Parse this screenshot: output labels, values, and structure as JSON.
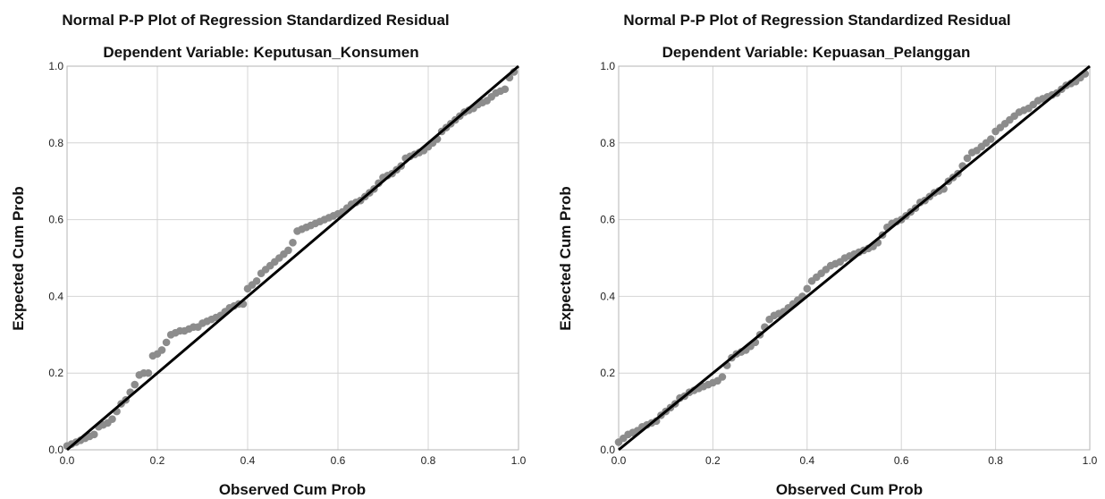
{
  "chart_data": [
    {
      "type": "scatter",
      "title": "Normal P-P Plot of Regression Standardized Residual",
      "subtitle": "Dependent Variable: Keputusan_Konsumen",
      "xlabel": "Observed Cum Prob",
      "ylabel": "Expected Cum Prob",
      "xlim": [
        0.0,
        1.0
      ],
      "ylim": [
        0.0,
        1.0
      ],
      "xticks": [
        "0.0",
        "0.2",
        "0.4",
        "0.6",
        "0.8",
        "1.0"
      ],
      "yticks": [
        "0.0",
        "0.2",
        "0.4",
        "0.6",
        "0.8",
        "1.0"
      ],
      "grid": true,
      "reference_line": {
        "x": [
          0,
          1
        ],
        "y": [
          0,
          1
        ],
        "color": "#000000"
      },
      "point_color": "#8c8c8c",
      "series": [
        {
          "x": [
            0.0,
            0.01,
            0.02,
            0.03,
            0.04,
            0.05,
            0.06,
            0.07,
            0.08,
            0.09,
            0.1,
            0.11,
            0.12,
            0.13,
            0.14,
            0.15,
            0.16,
            0.17,
            0.18,
            0.19,
            0.2,
            0.21,
            0.22,
            0.23,
            0.24,
            0.25,
            0.26,
            0.27,
            0.28,
            0.29,
            0.3,
            0.31,
            0.32,
            0.33,
            0.34,
            0.35,
            0.36,
            0.37,
            0.38,
            0.39,
            0.4,
            0.41,
            0.42,
            0.43,
            0.44,
            0.45,
            0.46,
            0.47,
            0.48,
            0.49,
            0.5,
            0.51,
            0.52,
            0.53,
            0.54,
            0.55,
            0.56,
            0.57,
            0.58,
            0.59,
            0.6,
            0.61,
            0.62,
            0.63,
            0.64,
            0.65,
            0.66,
            0.67,
            0.68,
            0.69,
            0.7,
            0.71,
            0.72,
            0.73,
            0.74,
            0.75,
            0.76,
            0.77,
            0.78,
            0.79,
            0.8,
            0.81,
            0.82,
            0.83,
            0.84,
            0.85,
            0.86,
            0.87,
            0.88,
            0.89,
            0.9,
            0.91,
            0.92,
            0.93,
            0.94,
            0.95,
            0.96,
            0.97,
            0.98,
            0.99
          ],
          "y": [
            0.01,
            0.015,
            0.02,
            0.025,
            0.03,
            0.035,
            0.04,
            0.06,
            0.065,
            0.07,
            0.08,
            0.1,
            0.12,
            0.13,
            0.15,
            0.17,
            0.195,
            0.2,
            0.2,
            0.245,
            0.25,
            0.26,
            0.28,
            0.3,
            0.305,
            0.31,
            0.31,
            0.315,
            0.32,
            0.32,
            0.33,
            0.335,
            0.34,
            0.345,
            0.35,
            0.36,
            0.37,
            0.375,
            0.38,
            0.38,
            0.42,
            0.43,
            0.44,
            0.46,
            0.47,
            0.48,
            0.49,
            0.5,
            0.51,
            0.52,
            0.54,
            0.57,
            0.575,
            0.58,
            0.585,
            0.59,
            0.595,
            0.6,
            0.605,
            0.61,
            0.615,
            0.62,
            0.63,
            0.64,
            0.645,
            0.65,
            0.66,
            0.67,
            0.68,
            0.695,
            0.71,
            0.715,
            0.72,
            0.73,
            0.74,
            0.76,
            0.765,
            0.77,
            0.775,
            0.78,
            0.79,
            0.8,
            0.81,
            0.83,
            0.84,
            0.85,
            0.86,
            0.87,
            0.88,
            0.885,
            0.89,
            0.9,
            0.905,
            0.91,
            0.92,
            0.93,
            0.935,
            0.94,
            0.97,
            0.985
          ]
        }
      ]
    },
    {
      "type": "scatter",
      "title": "Normal P-P Plot of Regression Standardized Residual",
      "subtitle": "Dependent Variable: Kepuasan_Pelanggan",
      "xlabel": "Observed Cum Prob",
      "ylabel": "Expected Cum Prob",
      "xlim": [
        0.0,
        1.0
      ],
      "ylim": [
        0.0,
        1.0
      ],
      "xticks": [
        "0.0",
        "0.2",
        "0.4",
        "0.6",
        "0.8",
        "1.0"
      ],
      "yticks": [
        "0.0",
        "0.2",
        "0.4",
        "0.6",
        "0.8",
        "1.0"
      ],
      "grid": true,
      "reference_line": {
        "x": [
          0,
          1
        ],
        "y": [
          0,
          1
        ],
        "color": "#000000"
      },
      "point_color": "#8c8c8c",
      "series": [
        {
          "x": [
            0.0,
            0.01,
            0.02,
            0.03,
            0.04,
            0.05,
            0.06,
            0.07,
            0.08,
            0.09,
            0.1,
            0.11,
            0.12,
            0.13,
            0.14,
            0.15,
            0.16,
            0.17,
            0.18,
            0.19,
            0.2,
            0.21,
            0.22,
            0.23,
            0.24,
            0.25,
            0.26,
            0.27,
            0.28,
            0.29,
            0.3,
            0.31,
            0.32,
            0.33,
            0.34,
            0.35,
            0.36,
            0.37,
            0.38,
            0.39,
            0.4,
            0.41,
            0.42,
            0.43,
            0.44,
            0.45,
            0.46,
            0.47,
            0.48,
            0.49,
            0.5,
            0.51,
            0.52,
            0.53,
            0.54,
            0.55,
            0.56,
            0.57,
            0.58,
            0.59,
            0.6,
            0.61,
            0.62,
            0.63,
            0.64,
            0.65,
            0.66,
            0.67,
            0.68,
            0.69,
            0.7,
            0.71,
            0.72,
            0.73,
            0.74,
            0.75,
            0.76,
            0.77,
            0.78,
            0.79,
            0.8,
            0.81,
            0.82,
            0.83,
            0.84,
            0.85,
            0.86,
            0.87,
            0.88,
            0.89,
            0.9,
            0.91,
            0.92,
            0.93,
            0.94,
            0.95,
            0.96,
            0.97,
            0.98,
            0.99
          ],
          "y": [
            0.02,
            0.03,
            0.04,
            0.045,
            0.05,
            0.06,
            0.065,
            0.07,
            0.075,
            0.09,
            0.1,
            0.11,
            0.12,
            0.135,
            0.14,
            0.15,
            0.155,
            0.16,
            0.165,
            0.17,
            0.175,
            0.18,
            0.19,
            0.22,
            0.24,
            0.25,
            0.255,
            0.26,
            0.27,
            0.28,
            0.3,
            0.32,
            0.34,
            0.35,
            0.355,
            0.36,
            0.37,
            0.38,
            0.39,
            0.4,
            0.42,
            0.44,
            0.45,
            0.46,
            0.47,
            0.48,
            0.485,
            0.49,
            0.5,
            0.505,
            0.51,
            0.515,
            0.52,
            0.525,
            0.53,
            0.54,
            0.56,
            0.58,
            0.59,
            0.595,
            0.6,
            0.61,
            0.62,
            0.63,
            0.645,
            0.65,
            0.66,
            0.67,
            0.675,
            0.68,
            0.7,
            0.71,
            0.72,
            0.74,
            0.76,
            0.775,
            0.78,
            0.79,
            0.8,
            0.81,
            0.83,
            0.84,
            0.85,
            0.86,
            0.87,
            0.88,
            0.885,
            0.89,
            0.9,
            0.91,
            0.915,
            0.92,
            0.925,
            0.93,
            0.94,
            0.95,
            0.955,
            0.96,
            0.97,
            0.98
          ]
        }
      ]
    }
  ]
}
